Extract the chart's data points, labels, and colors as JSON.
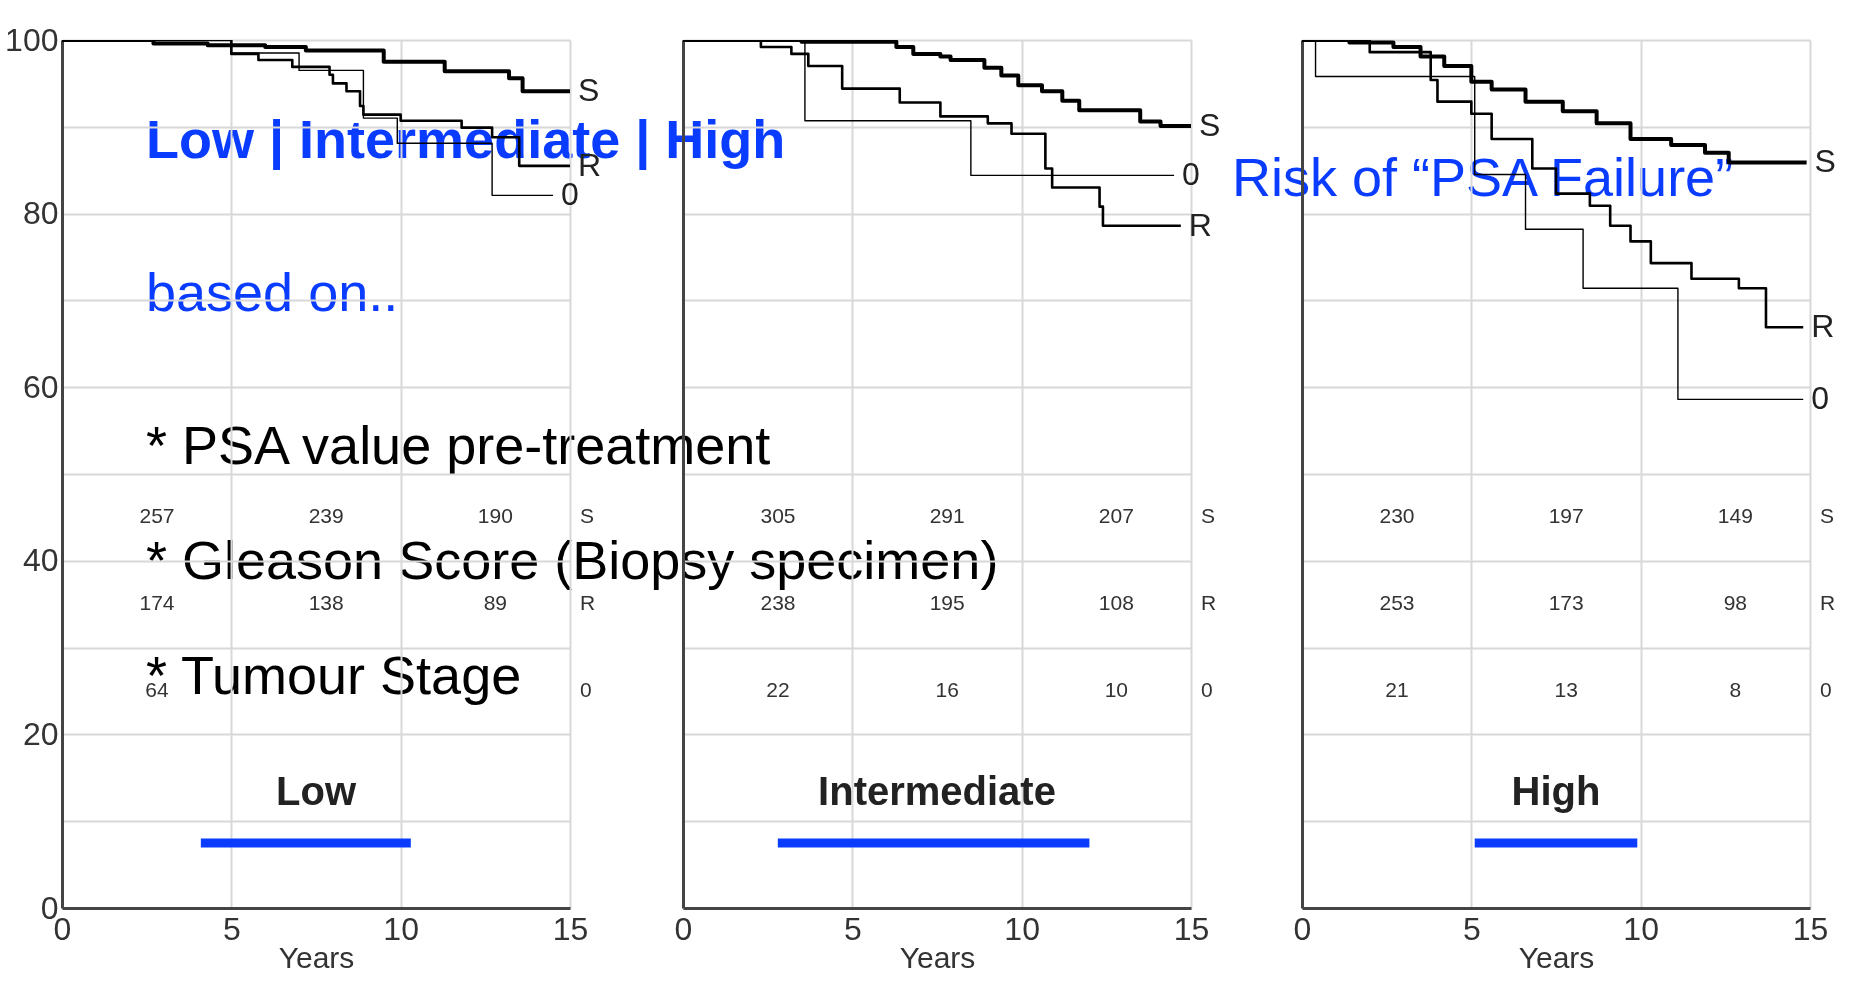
{
  "chart_data": [
    {
      "type": "step",
      "title": "Low",
      "xlabel": "Years",
      "xlim": [
        0,
        15
      ],
      "xticks": [
        0,
        5,
        10,
        15
      ],
      "ylim": [
        0,
        100
      ],
      "yticks": [
        0,
        {
          "value": 10,
          "label": null
        },
        20,
        {
          "value": 30,
          "label": null
        },
        40,
        {
          "value": 50,
          "label": null
        },
        60,
        {
          "value": 70,
          "label": null
        },
        80,
        {
          "value": 90,
          "label": null
        },
        100
      ],
      "grid": true,
      "series": [
        {
          "name": "S",
          "color": "#000000",
          "x": [
            0,
            2.7,
            4.3,
            6.0,
            7.2,
            9.5,
            11.3,
            13.2,
            13.6,
            15
          ],
          "values": [
            100,
            99.6,
            99.4,
            99.2,
            98.8,
            97.5,
            96.4,
            95.6,
            94.1,
            94.1
          ]
        },
        {
          "name": "R",
          "color": "#000000",
          "x": [
            0,
            5.0,
            5.8,
            6.8,
            7.9,
            8.0,
            8.4,
            8.8,
            8.9,
            10.0,
            11.8,
            12.7,
            13.5,
            15
          ],
          "values": [
            100,
            98.4,
            97.7,
            96.9,
            96,
            95,
            94.1,
            92.4,
            91.4,
            90.7,
            89.9,
            88.8,
            85.5,
            85.5
          ]
        },
        {
          "name": "0",
          "color": "#000000",
          "x": [
            0,
            5.0,
            7.0,
            8.9,
            9.9,
            12.7,
            14.5
          ],
          "values": [
            100,
            98.5,
            96.5,
            91,
            88.1,
            82.1,
            82.1
          ]
        },
        {
          "type": "line",
          "color": "#0a3cff",
          "x": [
            4.1,
            10.3
          ],
          "values": [
            7.5,
            7.5
          ]
        }
      ],
      "annotations": [
        "Low | Intermediate | High",
        "Risk of “PSA Failure”",
        "based on..",
        "* PSA value pre-treatment",
        "* Gleason Score (Biopsy specimen)",
        "* Tumour Stage",
        "S",
        "257",
        "239",
        "190",
        "R",
        "174",
        "138",
        "89",
        "0",
        "64"
      ]
    },
    {
      "type": "step",
      "title": "Intermediate",
      "xlabel": "Years",
      "xlim": [
        0,
        15
      ],
      "xticks": [
        0,
        5,
        10,
        15
      ],
      "ylim": [
        0,
        100
      ],
      "yticks": [
        0,
        {
          "value": 10,
          "label": null
        },
        20,
        {
          "value": 30,
          "label": null
        },
        40,
        {
          "value": 50,
          "label": null
        },
        60,
        {
          "value": 70,
          "label": null
        },
        80,
        {
          "value": 90,
          "label": null
        },
        100
      ],
      "grid": true,
      "tick_labels": "x",
      "series": [
        {
          "name": "S",
          "color": "#000000",
          "x": [
            0,
            3.5,
            6.3,
            6.8,
            7.6,
            7.9,
            8.9,
            9.4,
            9.9,
            10.6,
            11.2,
            11.7,
            13.5,
            14.1,
            15
          ],
          "values": [
            100,
            99.8,
            99.2,
            98.4,
            98.1,
            97.7,
            96.8,
            95.9,
            94.8,
            94.1,
            93,
            91.9,
            90.6,
            90.1,
            90.1
          ]
        },
        {
          "name": "R",
          "color": "#000000",
          "x": [
            0,
            2.3,
            3.2,
            3.7,
            4.7,
            6.4,
            7.6,
            9.0,
            9.7,
            10.7,
            10.9,
            12.3,
            12.4,
            14.7
          ],
          "values": [
            100,
            99.2,
            98.4,
            97,
            94.4,
            92.8,
            91.2,
            90.4,
            89.2,
            85.2,
            83,
            80.8,
            78.6,
            78.6
          ]
        },
        {
          "name": "0",
          "color": "#000000",
          "x": [
            0,
            3.6,
            8.5,
            14.5
          ],
          "values": [
            100,
            90.7,
            84.4,
            84.4
          ]
        },
        {
          "type": "line",
          "color": "#0a3cff",
          "x": [
            2.8,
            12.0
          ],
          "values": [
            7.5,
            7.5
          ]
        }
      ],
      "annotations": [
        "S",
        "305",
        "291",
        "207",
        "R",
        "238",
        "195",
        "108",
        "0",
        "22",
        "16",
        "10"
      ]
    },
    {
      "type": "step",
      "title": "High",
      "xlabel": "Years",
      "xlim": [
        0,
        15
      ],
      "xticks": [
        0,
        5,
        10,
        15
      ],
      "ylim": [
        0,
        100
      ],
      "yticks": [
        0,
        {
          "value": 10,
          "label": null
        },
        20,
        {
          "value": 30,
          "label": null
        },
        40,
        {
          "value": 50,
          "label": null
        },
        60,
        {
          "value": 70,
          "label": null
        },
        80,
        {
          "value": 90,
          "label": null
        },
        100
      ],
      "grid": true,
      "tick_labels": "x",
      "series": [
        {
          "name": "S",
          "color": "#000000",
          "x": [
            0,
            1.4,
            2.7,
            3.5,
            4.2,
            5.0,
            5.6,
            6.6,
            7.7,
            8.7,
            9.7,
            10.9,
            11.9,
            12.6,
            14.9
          ],
          "values": [
            100,
            99.7,
            99.2,
            98.1,
            97,
            95.2,
            94.3,
            92.9,
            91.8,
            90.4,
            88.6,
            87.9,
            87,
            85.9,
            85.9
          ]
        },
        {
          "name": "R",
          "color": "#000000",
          "x": [
            0,
            2.0,
            3.8,
            4.0,
            5.0,
            5.6,
            6.8,
            7.5,
            8.5,
            9.1,
            9.7,
            10.3,
            11.5,
            12.9,
            13.7,
            14.8
          ],
          "values": [
            100,
            98.6,
            95.4,
            92.9,
            91.5,
            88.6,
            85.2,
            82.3,
            80.9,
            78.6,
            76.8,
            74.3,
            72.5,
            71.4,
            66.9,
            66.9
          ]
        },
        {
          "name": "0",
          "color": "#000000",
          "x": [
            0,
            0.4,
            5.1,
            6.6,
            8.3,
            11.1,
            14.8
          ],
          "values": [
            100,
            95.8,
            84.5,
            78.2,
            71.4,
            58.6,
            58.6
          ]
        },
        {
          "type": "line",
          "color": "#0a3cff",
          "x": [
            5.1,
            9.9
          ],
          "values": [
            7.5,
            7.5
          ]
        }
      ],
      "annotations": [
        "S",
        "230",
        "197",
        "149",
        "R",
        "253",
        "173",
        "98",
        "0",
        "21",
        "13",
        "8"
      ]
    }
  ]
}
